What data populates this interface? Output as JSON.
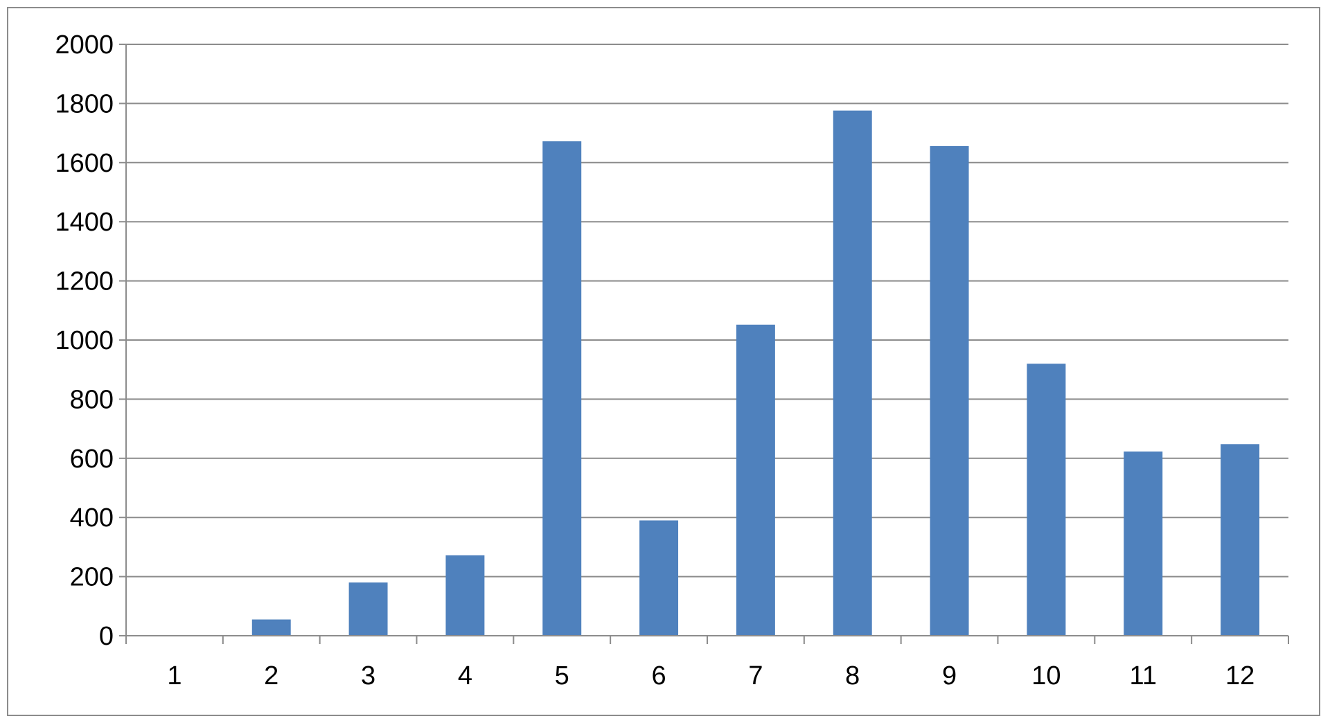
{
  "chart_data": {
    "type": "bar",
    "categories": [
      "1",
      "2",
      "3",
      "4",
      "5",
      "6",
      "7",
      "8",
      "9",
      "10",
      "11",
      "12"
    ],
    "values": [
      0,
      55,
      180,
      272,
      1672,
      390,
      1052,
      1776,
      1656,
      920,
      623,
      648
    ],
    "y_ticks": [
      "0",
      "200",
      "400",
      "600",
      "800",
      "1000",
      "1200",
      "1400",
      "1600",
      "1800",
      "2000"
    ],
    "ylim": [
      0,
      2000
    ],
    "title": "",
    "xlabel": "",
    "ylabel": "",
    "grid": true,
    "legend": "none",
    "colors": {
      "bar": "#4f81bd",
      "grid": "#8c8c8c",
      "text": "#000000"
    }
  }
}
